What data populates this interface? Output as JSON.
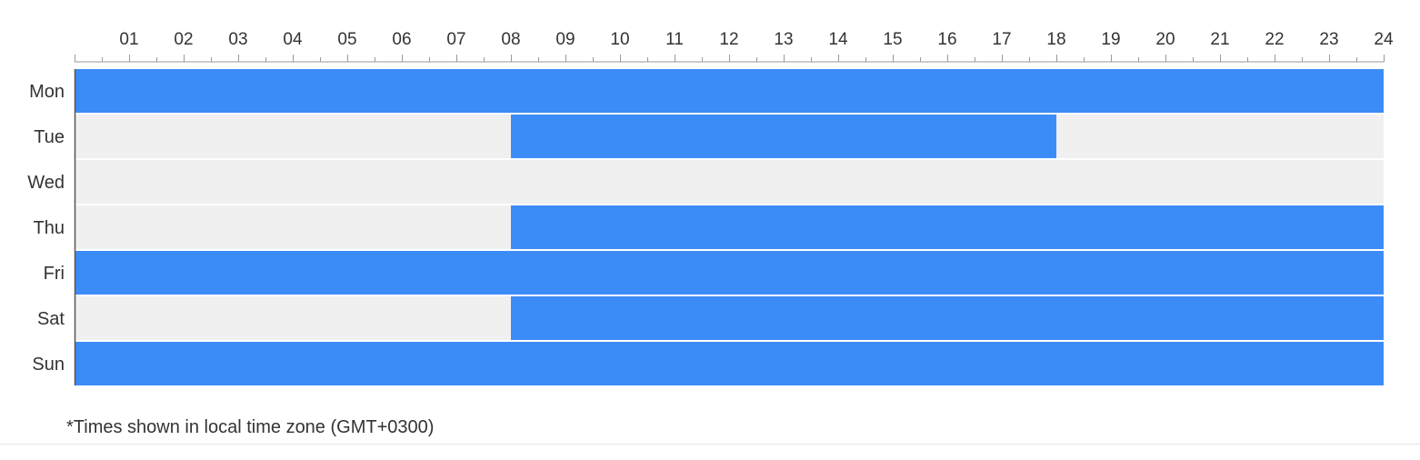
{
  "chart_data": {
    "type": "schedule",
    "hour_labels": [
      "01",
      "02",
      "03",
      "04",
      "05",
      "06",
      "07",
      "08",
      "09",
      "10",
      "11",
      "12",
      "13",
      "14",
      "15",
      "16",
      "17",
      "18",
      "19",
      "20",
      "21",
      "22",
      "23",
      "24"
    ],
    "x_range": [
      0,
      24
    ],
    "rows": [
      {
        "day": "Mon",
        "active": [
          [
            0,
            24
          ]
        ]
      },
      {
        "day": "Tue",
        "active": [
          [
            8,
            18
          ]
        ]
      },
      {
        "day": "Wed",
        "active": []
      },
      {
        "day": "Thu",
        "active": [
          [
            8,
            24
          ]
        ]
      },
      {
        "day": "Fri",
        "active": [
          [
            0,
            24
          ]
        ]
      },
      {
        "day": "Sat",
        "active": [
          [
            8,
            24
          ]
        ]
      },
      {
        "day": "Sun",
        "active": [
          [
            0,
            24
          ]
        ]
      }
    ],
    "colors": {
      "active": "#3c8cf7",
      "inactive": "#f0f0f0",
      "axis": "#999999"
    }
  },
  "footnote": "*Times shown in local time zone (GMT+0300)"
}
